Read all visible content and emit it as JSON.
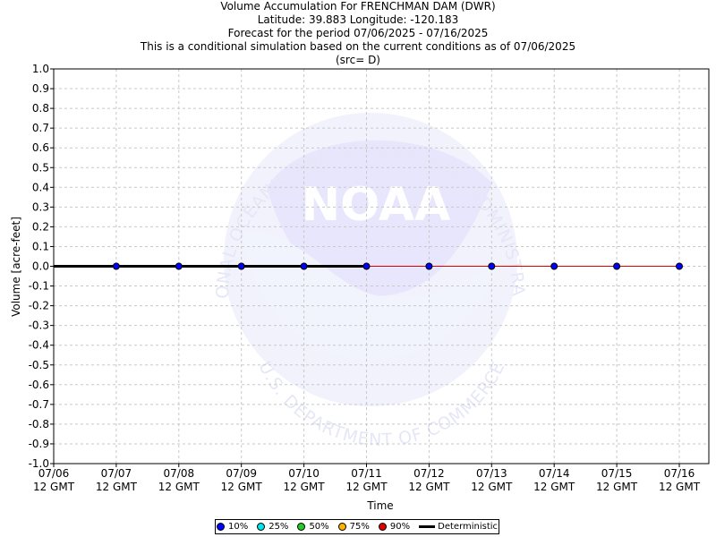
{
  "header": {
    "title": "Volume Accumulation For FRENCHMAN DAM (DWR)",
    "location": "Latitude: 39.883 Longitude: -120.183",
    "period": "Forecast for the period 07/06/2025 - 07/16/2025",
    "note": "This is a conditional simulation based on the current conditions as of 07/06/2025",
    "source": "(src= D)"
  },
  "watermark": {
    "agency_arc": "NATIONAL OCEANIC AND ATMOSPHERIC ADMINISTRATION",
    "logo_text": "NOAA",
    "department_arc": "U.S. DEPARTMENT OF COMMERCE"
  },
  "chart_data": {
    "type": "line",
    "xlabel": "Time",
    "ylabel": "Volume [acre-feet]",
    "ylim": [
      -1.0,
      1.0
    ],
    "yticks": [
      "1.0",
      "0.9",
      "0.8",
      "0.7",
      "0.6",
      "0.5",
      "0.4",
      "0.3",
      "0.2",
      "0.1",
      "0.0",
      "-0.1",
      "-0.2",
      "-0.3",
      "-0.4",
      "-0.5",
      "-0.6",
      "-0.7",
      "-0.8",
      "-0.9",
      "-1.0"
    ],
    "xticks": [
      {
        "date": "07/06",
        "hour": "12 GMT"
      },
      {
        "date": "07/07",
        "hour": "12 GMT"
      },
      {
        "date": "07/08",
        "hour": "12 GMT"
      },
      {
        "date": "07/09",
        "hour": "12 GMT"
      },
      {
        "date": "07/10",
        "hour": "12 GMT"
      },
      {
        "date": "07/11",
        "hour": "12 GMT"
      },
      {
        "date": "07/12",
        "hour": "12 GMT"
      },
      {
        "date": "07/13",
        "hour": "12 GMT"
      },
      {
        "date": "07/14",
        "hour": "12 GMT"
      },
      {
        "date": "07/15",
        "hour": "12 GMT"
      },
      {
        "date": "07/16",
        "hour": "12 GMT"
      }
    ],
    "grid": true,
    "legend_position": "bottom-center",
    "series": [
      {
        "name": "10%",
        "color": "#0000ff",
        "style": "line+markers",
        "x": [
          "07/06 12 GMT",
          "07/07 12 GMT",
          "07/08 12 GMT",
          "07/09 12 GMT",
          "07/10 12 GMT",
          "07/11 12 GMT",
          "07/12 12 GMT",
          "07/13 12 GMT",
          "07/14 12 GMT",
          "07/15 12 GMT",
          "07/16 12 GMT"
        ],
        "values": [
          0,
          0,
          0,
          0,
          0,
          0,
          0,
          0,
          0,
          0,
          0
        ]
      },
      {
        "name": "25%",
        "color": "#00e5e5",
        "style": "markers",
        "values": []
      },
      {
        "name": "50%",
        "color": "#22cc22",
        "style": "markers",
        "values": []
      },
      {
        "name": "75%",
        "color": "#ffb300",
        "style": "markers",
        "values": []
      },
      {
        "name": "90%",
        "color": "#e00000",
        "style": "markers",
        "values": []
      },
      {
        "name": "Deterministic",
        "color": "#000000",
        "style": "thick-line",
        "x": [
          "07/06 12 GMT",
          "07/07 12 GMT",
          "07/08 12 GMT",
          "07/09 12 GMT",
          "07/10 12 GMT",
          "07/11 12 GMT"
        ],
        "values": [
          0,
          0,
          0,
          0,
          0,
          0
        ]
      }
    ],
    "forecast_trace_color": "#e00000"
  }
}
